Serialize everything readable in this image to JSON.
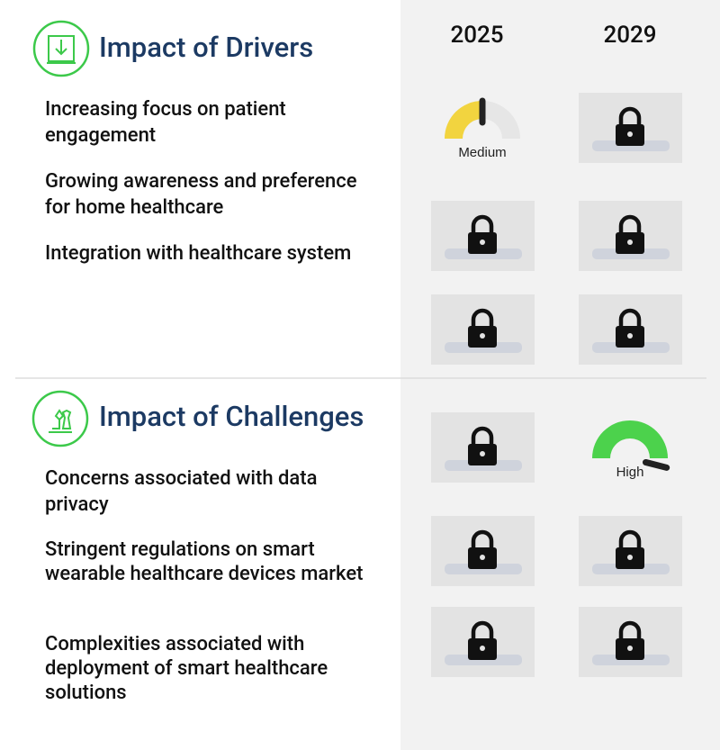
{
  "years": [
    "2025",
    "2029"
  ],
  "sections": [
    {
      "title": "Impact of Drivers",
      "items": [
        "Increasing focus on patient engagement",
        "Growing awareness and preference for home healthcare",
        "Integration with healthcare system"
      ],
      "ratings": [
        [
          {
            "label": "Medium",
            "color": "#f2d43f"
          },
          null
        ],
        [
          null,
          null
        ],
        [
          null,
          null
        ]
      ]
    },
    {
      "title": "Impact of Challenges",
      "items": [
        "Concerns associated with data privacy",
        "Stringent regulations on smart wearable healthcare devices market",
        "Complexities associated with deployment of smart healthcare solutions"
      ],
      "ratings": [
        [
          null,
          {
            "label": "High",
            "color": "#4cd24c"
          }
        ],
        [
          null,
          null
        ],
        [
          null,
          null
        ]
      ]
    }
  ]
}
